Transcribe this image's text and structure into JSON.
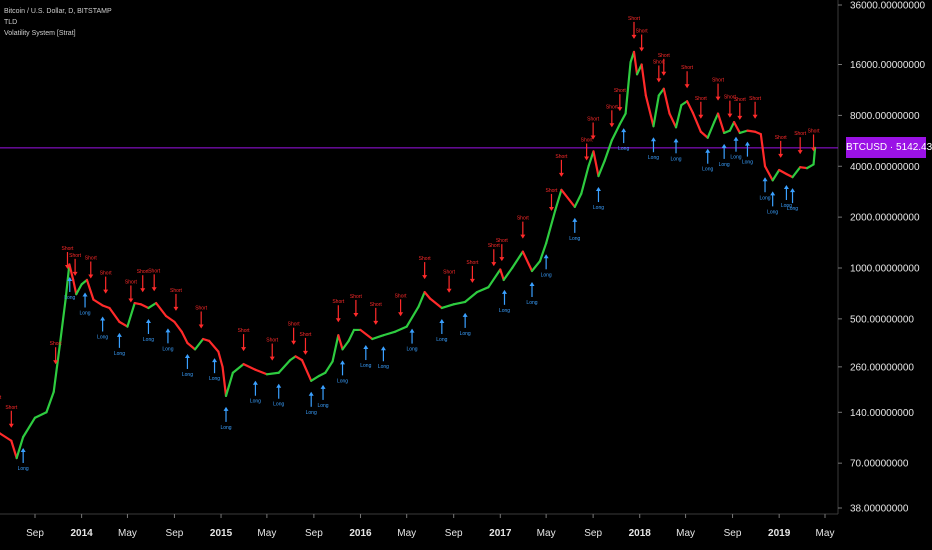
{
  "legend": {
    "symbol_line": "Bitcoin / U.S. Dollar, D, BITSTAMP",
    "indicator_1": "TLD",
    "indicator_2": "Volatility System [Strat]"
  },
  "price_badge": {
    "symbol": "BTCUSD",
    "value": "5142.43000000",
    "color": "#9b12e6"
  },
  "colors": {
    "background": "#000000",
    "up": "#2ecc40",
    "down": "#ff2a2a",
    "signal_short": "#ff2a2a",
    "signal_long": "#3aa0ff",
    "price_line": "#9b12e6"
  },
  "chart_data": {
    "type": "line",
    "y_scale": "log",
    "ylim": [
      30,
      40000
    ],
    "y_ticks": [
      {
        "value": 36000,
        "label": "36000.00000000"
      },
      {
        "value": 16000,
        "label": "16000.00000000"
      },
      {
        "value": 8000,
        "label": "8000.00000000"
      },
      {
        "value": 4000,
        "label": "4000.00000000"
      },
      {
        "value": 2000,
        "label": "2000.00000000"
      },
      {
        "value": 1000,
        "label": "1000.00000000"
      },
      {
        "value": 500,
        "label": "500.00000000"
      },
      {
        "value": 260,
        "label": "260.00000000"
      },
      {
        "value": 140,
        "label": "140.00000000"
      },
      {
        "value": 70,
        "label": "70.00000000"
      },
      {
        "value": 38,
        "label": "38.00000000"
      }
    ],
    "x_ticks": [
      {
        "label": "Sep",
        "date": "2013-09-01",
        "year": false
      },
      {
        "label": "2014",
        "date": "2014-01-01",
        "year": true
      },
      {
        "label": "May",
        "date": "2014-05-01",
        "year": false
      },
      {
        "label": "Sep",
        "date": "2014-09-01",
        "year": false
      },
      {
        "label": "2015",
        "date": "2015-01-01",
        "year": true
      },
      {
        "label": "May",
        "date": "2015-05-01",
        "year": false
      },
      {
        "label": "Sep",
        "date": "2015-09-01",
        "year": false
      },
      {
        "label": "2016",
        "date": "2016-01-01",
        "year": true
      },
      {
        "label": "May",
        "date": "2016-05-01",
        "year": false
      },
      {
        "label": "Sep",
        "date": "2016-09-01",
        "year": false
      },
      {
        "label": "2017",
        "date": "2017-01-01",
        "year": true
      },
      {
        "label": "May",
        "date": "2017-05-01",
        "year": false
      },
      {
        "label": "Sep",
        "date": "2017-09-01",
        "year": false
      },
      {
        "label": "2018",
        "date": "2018-01-01",
        "year": true
      },
      {
        "label": "May",
        "date": "2018-05-01",
        "year": false
      },
      {
        "label": "Sep",
        "date": "2018-09-01",
        "year": false
      },
      {
        "label": "2019",
        "date": "2019-01-01",
        "year": true
      },
      {
        "label": "May",
        "date": "2019-05-01",
        "year": false
      }
    ],
    "current_price": 5142.43,
    "series": [
      {
        "x": [
          "2013-05-01",
          "2013-06-01",
          "2013-07-01",
          "2013-07-15",
          "2013-08-01",
          "2013-09-01",
          "2013-10-01",
          "2013-10-20",
          "2013-11-05",
          "2013-11-20",
          "2013-11-30",
          "2013-12-10",
          "2013-12-18",
          "2014-01-01",
          "2014-01-15",
          "2014-02-01",
          "2014-02-25",
          "2014-03-15",
          "2014-04-10",
          "2014-05-01",
          "2014-05-20",
          "2014-06-05",
          "2014-06-25",
          "2014-07-15",
          "2014-08-10",
          "2014-09-01",
          "2014-09-20",
          "2014-10-05",
          "2014-10-25",
          "2014-11-15",
          "2014-12-01",
          "2014-12-25",
          "2015-01-05",
          "2015-01-14",
          "2015-02-01",
          "2015-03-01",
          "2015-04-01",
          "2015-05-01",
          "2015-06-01",
          "2015-07-01",
          "2015-07-15",
          "2015-08-01",
          "2015-08-25",
          "2015-09-15",
          "2015-10-01",
          "2015-10-20",
          "2015-11-04",
          "2015-11-15",
          "2015-12-01",
          "2015-12-15",
          "2016-01-01",
          "2016-02-01",
          "2016-03-01",
          "2016-04-01",
          "2016-05-01",
          "2016-06-01",
          "2016-06-17",
          "2016-07-01",
          "2016-08-01",
          "2016-09-01",
          "2016-10-01",
          "2016-11-01",
          "2016-12-01",
          "2017-01-01",
          "2017-01-10",
          "2017-02-01",
          "2017-03-01",
          "2017-03-25",
          "2017-04-15",
          "2017-05-01",
          "2017-05-25",
          "2017-06-10",
          "2017-07-15",
          "2017-08-01",
          "2017-08-20",
          "2017-09-02",
          "2017-09-15",
          "2017-10-01",
          "2017-10-20",
          "2017-11-10",
          "2017-11-25",
          "2017-12-08",
          "2017-12-17",
          "2017-12-25",
          "2018-01-06",
          "2018-01-17",
          "2018-02-06",
          "2018-02-20",
          "2018-03-05",
          "2018-03-20",
          "2018-04-06",
          "2018-04-20",
          "2018-05-05",
          "2018-05-20",
          "2018-06-10",
          "2018-06-28",
          "2018-07-15",
          "2018-07-25",
          "2018-08-10",
          "2018-08-25",
          "2018-09-05",
          "2018-09-20",
          "2018-10-10",
          "2018-10-30",
          "2018-11-14",
          "2018-11-25",
          "2018-12-15",
          "2019-01-01",
          "2019-01-20",
          "2019-02-05",
          "2019-02-25",
          "2019-03-15",
          "2019-04-01",
          "2019-04-05"
        ],
        "values": [
          115,
          105,
          95,
          75,
          100,
          130,
          140,
          185,
          350,
          650,
          1050,
          850,
          700,
          800,
          850,
          650,
          600,
          580,
          480,
          450,
          620,
          610,
          580,
          620,
          520,
          480,
          420,
          360,
          330,
          380,
          370,
          320,
          260,
          175,
          240,
          270,
          250,
          235,
          240,
          285,
          300,
          285,
          215,
          230,
          240,
          280,
          400,
          330,
          370,
          430,
          430,
          380,
          400,
          420,
          450,
          590,
          720,
          660,
          580,
          610,
          630,
          720,
          770,
          980,
          850,
          1000,
          1250,
          960,
          1100,
          1400,
          2200,
          2900,
          2300,
          2750,
          4000,
          4900,
          3500,
          4300,
          5700,
          7100,
          8200,
          16500,
          19000,
          14000,
          16000,
          10500,
          6900,
          10500,
          11500,
          8200,
          6800,
          9200,
          9700,
          8300,
          6400,
          5900,
          7300,
          8200,
          6300,
          6500,
          7300,
          6300,
          6500,
          6400,
          6200,
          4000,
          3300,
          3800,
          3600,
          3450,
          3950,
          3900,
          4100,
          5142
        ]
      }
    ],
    "annotations": {
      "short_label": "Short",
      "long_label": "Long",
      "short_dates": [
        "2013-05-20",
        "2013-07-01",
        "2013-10-25",
        "2013-11-25",
        "2013-12-15",
        "2014-01-25",
        "2014-03-05",
        "2014-05-10",
        "2014-06-10",
        "2014-07-10",
        "2014-09-05",
        "2014-11-10",
        "2015-03-01",
        "2015-05-15",
        "2015-07-10",
        "2015-08-10",
        "2015-11-04",
        "2015-12-20",
        "2016-02-10",
        "2016-04-15",
        "2016-06-17",
        "2016-08-20",
        "2016-10-20",
        "2016-12-15",
        "2017-01-05",
        "2017-03-01",
        "2017-05-15",
        "2017-06-10",
        "2017-08-15",
        "2017-09-01",
        "2017-10-20",
        "2017-11-10",
        "2017-12-17",
        "2018-01-06",
        "2018-02-20",
        "2018-03-05",
        "2018-05-05",
        "2018-06-10",
        "2018-07-25",
        "2018-08-25",
        "2018-09-20",
        "2018-10-30",
        "2019-01-05",
        "2019-02-25",
        "2019-04-01"
      ],
      "long_dates": [
        "2013-08-01",
        "2013-12-01",
        "2014-01-10",
        "2014-02-25",
        "2014-04-10",
        "2014-06-25",
        "2014-08-15",
        "2014-10-05",
        "2014-12-15",
        "2015-01-14",
        "2015-04-01",
        "2015-06-01",
        "2015-08-25",
        "2015-09-25",
        "2015-11-15",
        "2016-01-15",
        "2016-03-01",
        "2016-05-15",
        "2016-08-01",
        "2016-10-01",
        "2017-01-12",
        "2017-03-25",
        "2017-05-01",
        "2017-07-15",
        "2017-09-15",
        "2017-11-20",
        "2018-02-06",
        "2018-04-06",
        "2018-06-28",
        "2018-08-10",
        "2018-09-10",
        "2018-10-10",
        "2018-11-25",
        "2018-12-15",
        "2019-01-20",
        "2019-02-05"
      ]
    }
  }
}
